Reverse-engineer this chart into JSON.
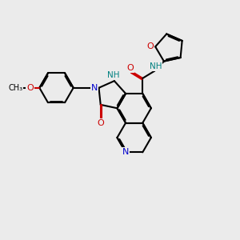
{
  "bg_color": "#ebebeb",
  "bond_color": "#000000",
  "nitrogen_color": "#0000cc",
  "oxygen_color": "#cc0000",
  "nh_color": "#008080",
  "bond_width": 1.5,
  "dbo": 0.055,
  "figsize": [
    3.0,
    3.0
  ],
  "dpi": 100,
  "xlim": [
    0,
    10
  ],
  "ylim": [
    0,
    10
  ]
}
